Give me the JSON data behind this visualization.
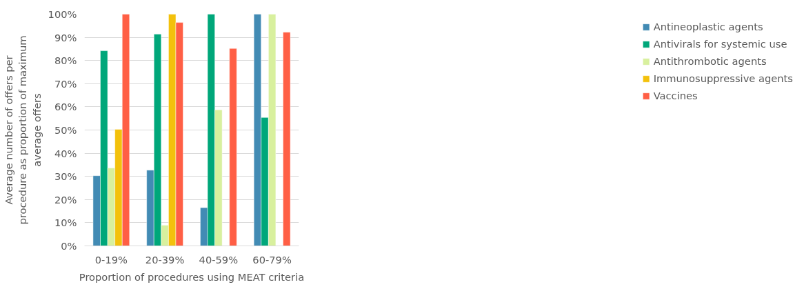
{
  "chart_data": {
    "type": "bar",
    "xlabel": "Proportion of procedures using MEAT criteria",
    "ylabel": "Average number of offers per procedure as proportion of maximum average offers",
    "categories": [
      "0-19%",
      "20-39%",
      "40-59%",
      "60-79%"
    ],
    "series": [
      {
        "name": "Antineoplastic agents",
        "color": "#428bb4",
        "values": [
          30.3,
          32.7,
          16.5,
          100
        ]
      },
      {
        "name": "Antivirals for systemic use",
        "color": "#00a77a",
        "values": [
          84.2,
          91.4,
          100,
          55.4
        ]
      },
      {
        "name": "Antithrombotic agents",
        "color": "#d8f09e",
        "values": [
          33.6,
          8.9,
          58.7,
          100
        ]
      },
      {
        "name": "Immunosuppressive agents",
        "color": "#f3c10c",
        "values": [
          50.3,
          100,
          null,
          null
        ]
      },
      {
        "name": "Vaccines",
        "color": "#ff5f45",
        "values": [
          100,
          96.4,
          85.2,
          92.2
        ]
      }
    ],
    "ylim": [
      0,
      100
    ],
    "yticks": [
      {
        "value": 0,
        "label": "0%"
      },
      {
        "value": 10,
        "label": "10%"
      },
      {
        "value": 20,
        "label": "20%"
      },
      {
        "value": 30,
        "label": "30%"
      },
      {
        "value": 40,
        "label": "40%"
      },
      {
        "value": 50,
        "label": "50%"
      },
      {
        "value": 60,
        "label": "60%"
      },
      {
        "value": 70,
        "label": "70%"
      },
      {
        "value": 80,
        "label": "80%"
      },
      {
        "value": 90,
        "label": "90%"
      },
      {
        "value": 100,
        "label": "100%"
      }
    ],
    "grid": "y",
    "legend": "right"
  }
}
